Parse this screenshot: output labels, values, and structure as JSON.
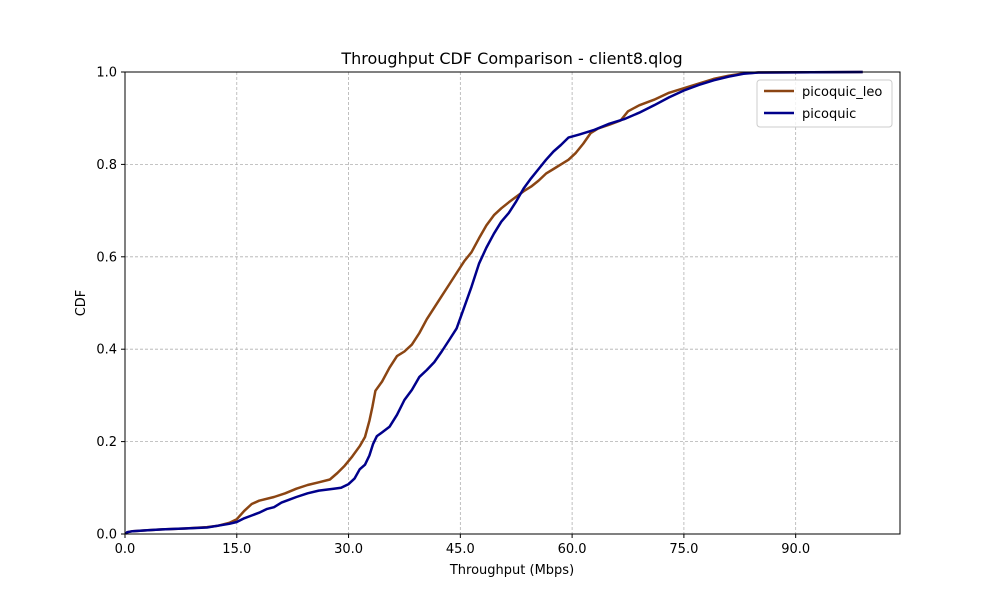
{
  "chart_data": {
    "type": "line",
    "title": "Throughput CDF Comparison - client8.qlog",
    "xlabel": "Throughput (Mbps)",
    "ylabel": "CDF",
    "xlim": [
      0,
      104
    ],
    "ylim": [
      0,
      1
    ],
    "x_ticks": [
      "0.0",
      "15.0",
      "30.0",
      "45.0",
      "60.0",
      "75.0",
      "90.0"
    ],
    "y_ticks": [
      "0.0",
      "0.2",
      "0.4",
      "0.6",
      "0.8",
      "1.0"
    ],
    "grid": true,
    "legend_position": "top-right",
    "series": [
      {
        "name": "picoquic_leo",
        "color": "#8B4513",
        "points": [
          [
            0.1,
            0.0
          ],
          [
            0.3,
            0.004
          ],
          [
            1,
            0.006
          ],
          [
            3,
            0.008
          ],
          [
            5,
            0.01
          ],
          [
            8,
            0.012
          ],
          [
            11,
            0.015
          ],
          [
            12.5,
            0.018
          ],
          [
            14,
            0.024
          ],
          [
            15,
            0.032
          ],
          [
            16,
            0.05
          ],
          [
            17,
            0.065
          ],
          [
            18,
            0.072
          ],
          [
            20,
            0.08
          ],
          [
            21.5,
            0.088
          ],
          [
            23,
            0.098
          ],
          [
            24.5,
            0.106
          ],
          [
            26,
            0.112
          ],
          [
            27.5,
            0.118
          ],
          [
            28.5,
            0.132
          ],
          [
            29.5,
            0.148
          ],
          [
            30.5,
            0.168
          ],
          [
            31.5,
            0.19
          ],
          [
            32.2,
            0.21
          ],
          [
            32.8,
            0.245
          ],
          [
            33.2,
            0.275
          ],
          [
            33.6,
            0.31
          ],
          [
            34.5,
            0.33
          ],
          [
            35.5,
            0.36
          ],
          [
            36.5,
            0.385
          ],
          [
            37.5,
            0.395
          ],
          [
            38.5,
            0.41
          ],
          [
            39.5,
            0.435
          ],
          [
            40.5,
            0.465
          ],
          [
            41.5,
            0.49
          ],
          [
            42.5,
            0.515
          ],
          [
            43.5,
            0.54
          ],
          [
            44.5,
            0.565
          ],
          [
            45.5,
            0.59
          ],
          [
            46.5,
            0.61
          ],
          [
            47.5,
            0.64
          ],
          [
            48.5,
            0.668
          ],
          [
            49.5,
            0.69
          ],
          [
            50.5,
            0.705
          ],
          [
            51.5,
            0.718
          ],
          [
            52.5,
            0.73
          ],
          [
            53.5,
            0.742
          ],
          [
            54.5,
            0.752
          ],
          [
            55.5,
            0.765
          ],
          [
            56.5,
            0.78
          ],
          [
            57.5,
            0.79
          ],
          [
            58.5,
            0.8
          ],
          [
            59.5,
            0.81
          ],
          [
            60.5,
            0.825
          ],
          [
            61.5,
            0.845
          ],
          [
            62.5,
            0.868
          ],
          [
            63.5,
            0.878
          ],
          [
            65,
            0.886
          ],
          [
            66.5,
            0.895
          ],
          [
            67.5,
            0.915
          ],
          [
            69,
            0.928
          ],
          [
            71,
            0.94
          ],
          [
            73,
            0.955
          ],
          [
            75,
            0.965
          ],
          [
            77,
            0.975
          ],
          [
            79,
            0.985
          ],
          [
            81,
            0.992
          ],
          [
            83,
            0.997
          ],
          [
            85,
            0.999
          ],
          [
            99,
            1.0
          ]
        ]
      },
      {
        "name": "picoquic",
        "color": "#00008B",
        "points": [
          [
            0.1,
            0.0
          ],
          [
            0.3,
            0.004
          ],
          [
            1,
            0.006
          ],
          [
            3,
            0.008
          ],
          [
            5,
            0.01
          ],
          [
            8,
            0.012
          ],
          [
            11,
            0.014
          ],
          [
            12.5,
            0.018
          ],
          [
            14,
            0.022
          ],
          [
            15,
            0.026
          ],
          [
            16,
            0.034
          ],
          [
            17,
            0.04
          ],
          [
            18,
            0.046
          ],
          [
            19,
            0.054
          ],
          [
            20,
            0.058
          ],
          [
            21,
            0.068
          ],
          [
            22,
            0.074
          ],
          [
            23,
            0.08
          ],
          [
            24.5,
            0.088
          ],
          [
            26,
            0.094
          ],
          [
            28,
            0.098
          ],
          [
            29,
            0.1
          ],
          [
            30,
            0.108
          ],
          [
            30.8,
            0.12
          ],
          [
            31.5,
            0.14
          ],
          [
            32.2,
            0.15
          ],
          [
            32.8,
            0.17
          ],
          [
            33.3,
            0.195
          ],
          [
            33.8,
            0.212
          ],
          [
            34.5,
            0.22
          ],
          [
            35.5,
            0.232
          ],
          [
            36.5,
            0.258
          ],
          [
            37.5,
            0.29
          ],
          [
            38.5,
            0.312
          ],
          [
            39.5,
            0.34
          ],
          [
            40.5,
            0.355
          ],
          [
            41.5,
            0.372
          ],
          [
            42.5,
            0.395
          ],
          [
            43.5,
            0.42
          ],
          [
            44.5,
            0.445
          ],
          [
            45.5,
            0.49
          ],
          [
            46.5,
            0.535
          ],
          [
            47.5,
            0.585
          ],
          [
            48.5,
            0.62
          ],
          [
            49.5,
            0.65
          ],
          [
            50.5,
            0.676
          ],
          [
            51.5,
            0.695
          ],
          [
            52.5,
            0.72
          ],
          [
            53.5,
            0.748
          ],
          [
            54.5,
            0.77
          ],
          [
            55.5,
            0.79
          ],
          [
            56.5,
            0.81
          ],
          [
            57.5,
            0.828
          ],
          [
            58.5,
            0.842
          ],
          [
            59.5,
            0.858
          ],
          [
            61,
            0.865
          ],
          [
            63,
            0.875
          ],
          [
            65,
            0.888
          ],
          [
            67,
            0.898
          ],
          [
            69,
            0.912
          ],
          [
            71,
            0.928
          ],
          [
            73,
            0.945
          ],
          [
            75,
            0.96
          ],
          [
            77,
            0.972
          ],
          [
            79,
            0.982
          ],
          [
            81,
            0.99
          ],
          [
            83,
            0.996
          ],
          [
            85,
            0.999
          ],
          [
            99,
            1.0
          ]
        ]
      }
    ]
  }
}
